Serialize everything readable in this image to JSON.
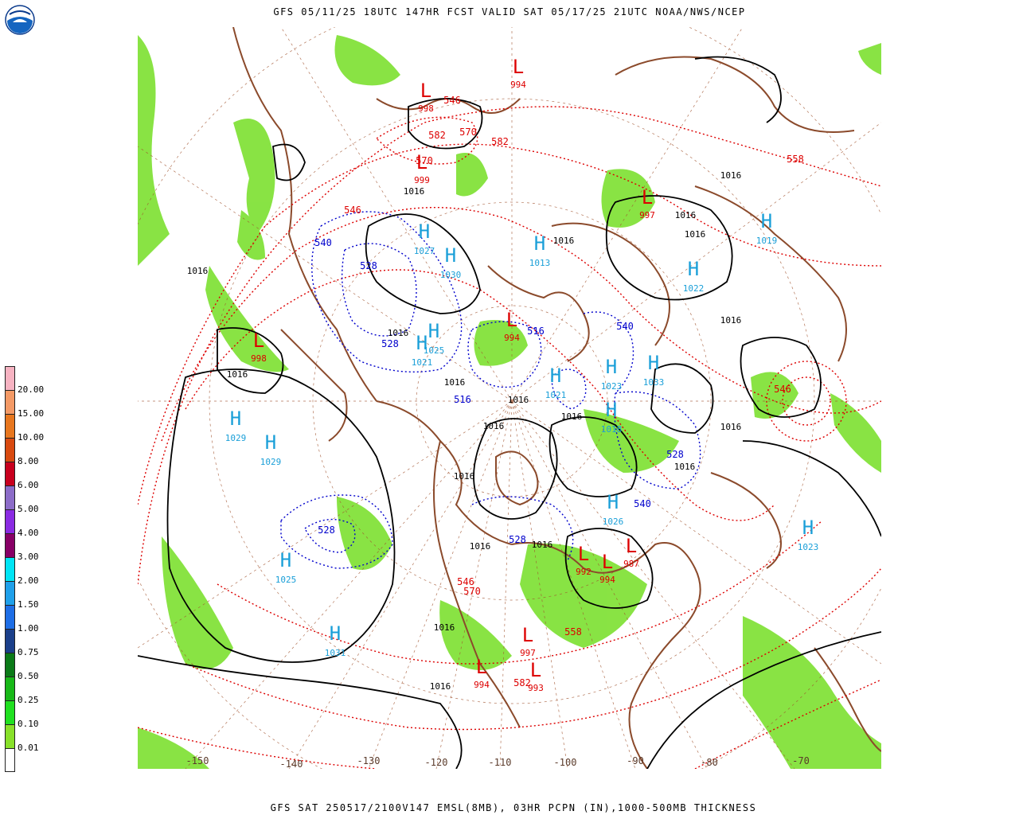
{
  "title": "GFS 05/11/25 18UTC 147HR FCST VALID SAT 05/17/25 21UTC NOAA/NWS/NCEP",
  "footer": "GFS SAT 250517/2100V147 EMSL(8MB), 03HR PCPN (IN),1000-500MB THICKNESS",
  "logo_text": "NOAA",
  "legend": {
    "items": [
      {
        "label": "20.00",
        "color": "#f7b3c2"
      },
      {
        "label": "15.00",
        "color": "#f49a66"
      },
      {
        "label": "10.00",
        "color": "#e8771f"
      },
      {
        "label": "8.00",
        "color": "#d84a10"
      },
      {
        "label": "6.00",
        "color": "#c8001e"
      },
      {
        "label": "5.00",
        "color": "#8c6cc8"
      },
      {
        "label": "4.00",
        "color": "#8a2be2"
      },
      {
        "label": "3.00",
        "color": "#880066"
      },
      {
        "label": "2.00",
        "color": "#00e5f5"
      },
      {
        "label": "1.50",
        "color": "#1fa0ea"
      },
      {
        "label": "1.00",
        "color": "#1e6ee6"
      },
      {
        "label": "0.75",
        "color": "#1b3f8a"
      },
      {
        "label": "0.50",
        "color": "#0b7a18"
      },
      {
        "label": "0.25",
        "color": "#18b818"
      },
      {
        "label": "0.10",
        "color": "#20e020"
      },
      {
        "label": "0.01",
        "color": "#88e02a"
      },
      {
        "label": "",
        "color": "#ffffff"
      }
    ]
  },
  "colors": {
    "pressure_contour": "#000000",
    "thickness_warm": "#dd0000",
    "thickness_cold": "#0000cc",
    "coastline": "#8b4a2b",
    "high_center": "#1a9fd8",
    "low_center": "#dd0000",
    "precip": "#7ce030"
  },
  "lon_labels": [
    "-150",
    "-140",
    "-130",
    "-120",
    "-110",
    "-100",
    "-90",
    "-80",
    "-70"
  ],
  "highs": [
    {
      "sym": "H",
      "value": "1027"
    },
    {
      "sym": "H",
      "value": "1030"
    },
    {
      "sym": "H",
      "value": "1025"
    },
    {
      "sym": "H",
      "value": "1021"
    },
    {
      "sym": "H",
      "value": "1013"
    },
    {
      "sym": "H",
      "value": "1019"
    },
    {
      "sym": "H",
      "value": "1022"
    },
    {
      "sym": "H",
      "value": "1023"
    },
    {
      "sym": "H",
      "value": "1029"
    },
    {
      "sym": "H",
      "value": "1029"
    },
    {
      "sym": "H",
      "value": "1025"
    },
    {
      "sym": "H",
      "value": "1031"
    },
    {
      "sym": "H",
      "value": "1023"
    },
    {
      "sym": "H",
      "value": "1033"
    },
    {
      "sym": "H",
      "value": "1021"
    },
    {
      "sym": "H",
      "value": "1026"
    },
    {
      "sym": "H",
      "value": "1018"
    }
  ],
  "lows": [
    {
      "sym": "L",
      "value": "994"
    },
    {
      "sym": "L",
      "value": "997"
    },
    {
      "sym": "L",
      "value": "998"
    },
    {
      "sym": "L",
      "value": "999"
    },
    {
      "sym": "L",
      "value": "994"
    },
    {
      "sym": "L",
      "value": "998"
    },
    {
      "sym": "L",
      "value": "992"
    },
    {
      "sym": "L",
      "value": "994"
    },
    {
      "sym": "L",
      "value": "987"
    },
    {
      "sym": "L",
      "value": "997"
    },
    {
      "sym": "L",
      "value": "994"
    },
    {
      "sym": "L",
      "value": "993"
    }
  ],
  "isobar_labels": [
    "1016",
    "1016",
    "1016",
    "1016",
    "1016",
    "1016",
    "1016",
    "1016",
    "1016",
    "1016",
    "1016",
    "1016",
    "1016",
    "1016",
    "1016",
    "1016",
    "1016",
    "1016",
    "1016",
    "1016"
  ],
  "thickness_labels_warm": [
    "546",
    "570",
    "582",
    "582",
    "570",
    "558",
    "546",
    "546",
    "570",
    "582",
    "546",
    "558"
  ],
  "thickness_labels_cold": [
    "540",
    "528",
    "528",
    "516",
    "516",
    "528",
    "540",
    "528",
    "528",
    "540"
  ]
}
